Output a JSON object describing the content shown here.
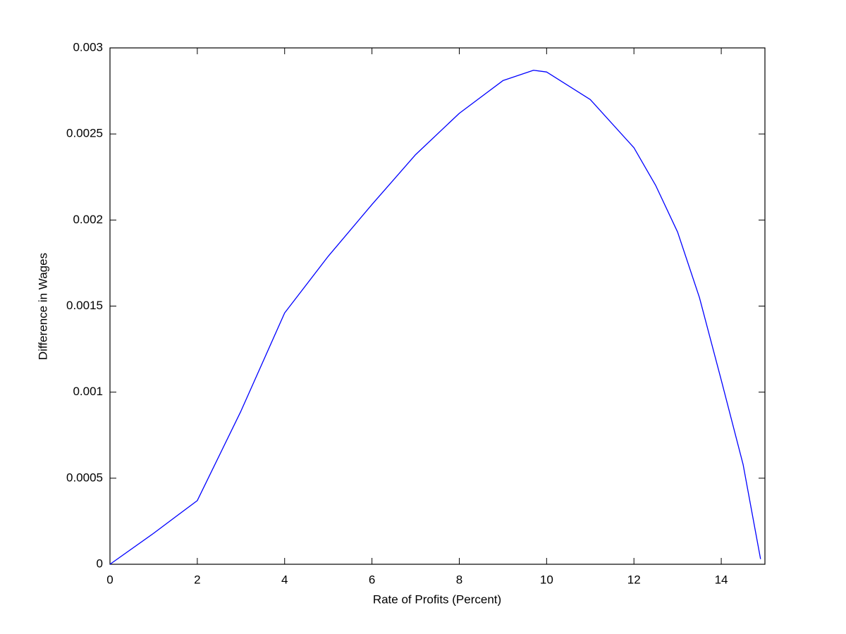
{
  "chart_data": {
    "type": "line",
    "xlabel": "Rate of Profits (Percent)",
    "ylabel": "Difference in Wages",
    "x": [
      0,
      1,
      2,
      3,
      4,
      5,
      6,
      7,
      8,
      9,
      9.7,
      10,
      11,
      12,
      12.5,
      13,
      13.5,
      14,
      14.5,
      14.9
    ],
    "series": [
      {
        "color": "#0000ff",
        "values": [
          0,
          0.00018,
          0.00037,
          0.00089,
          0.00146,
          0.00179,
          0.00209,
          0.00238,
          0.00262,
          0.00281,
          0.00287,
          0.00286,
          0.0027,
          0.00242,
          0.0022,
          0.00193,
          0.00155,
          0.00107,
          0.00058,
          3e-05
        ]
      }
    ],
    "xlim": [
      0,
      15
    ],
    "ylim": [
      0,
      0.003
    ],
    "xticks": [
      0,
      2,
      4,
      6,
      8,
      10,
      12,
      14
    ],
    "yticks": [
      0,
      0.0005,
      0.001,
      0.0015,
      0.002,
      0.0025,
      0.003
    ]
  }
}
